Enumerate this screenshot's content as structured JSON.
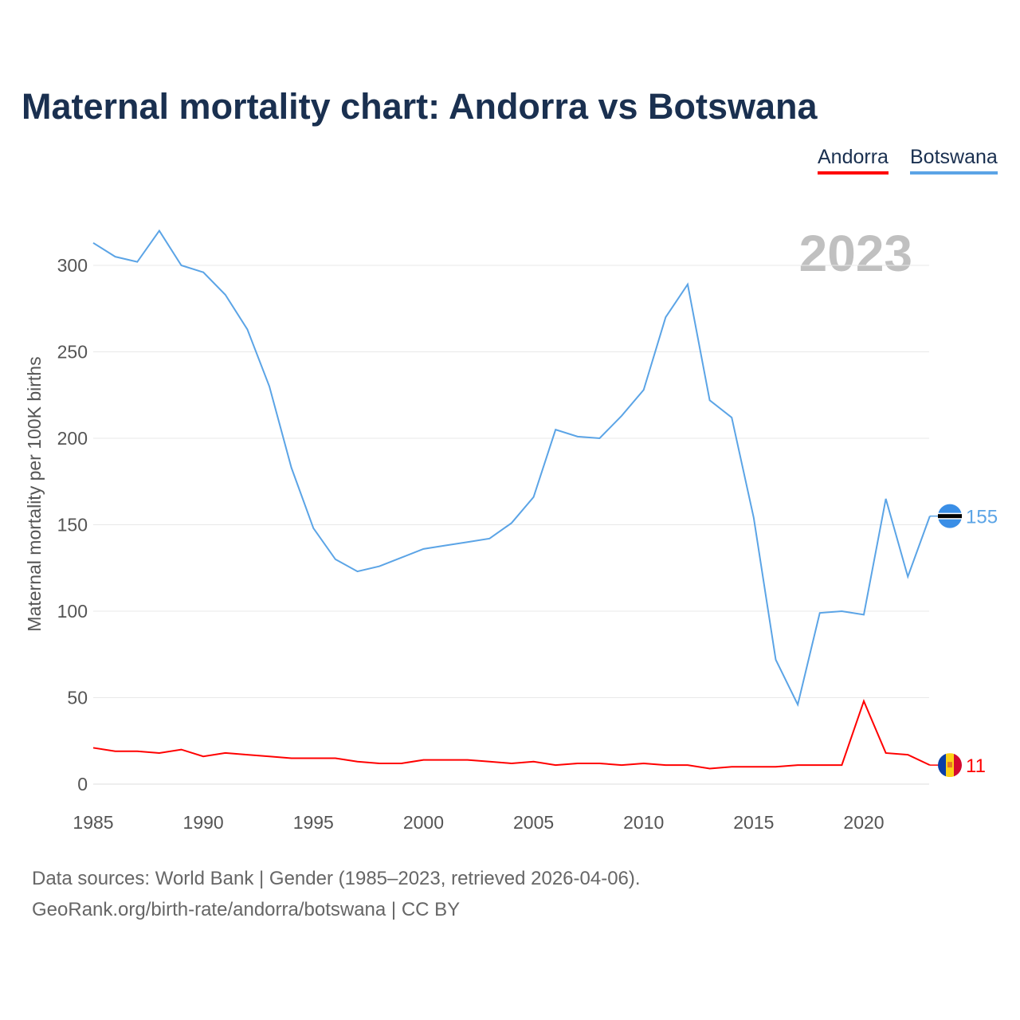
{
  "title": "Maternal mortality chart: Andorra vs Botswana",
  "year_label": "2023",
  "sources": [
    "Data sources: World Bank | Gender (1985–2023, retrieved 2026-04-06).",
    "GeoRank.org/birth-rate/andorra/botswana | CC BY"
  ],
  "chart_data": {
    "type": "line",
    "title": "Maternal mortality chart: Andorra vs Botswana",
    "xlabel": "",
    "ylabel": "Maternal mortality per 100K births",
    "xlim": [
      1985,
      2023
    ],
    "ylim": [
      0,
      320
    ],
    "x_ticks": [
      1985,
      1990,
      1995,
      2000,
      2005,
      2010,
      2015,
      2020
    ],
    "y_ticks": [
      0,
      50,
      100,
      150,
      200,
      250,
      300
    ],
    "grid": true,
    "legend": "top-right",
    "x": [
      1985,
      1986,
      1987,
      1988,
      1989,
      1990,
      1991,
      1992,
      1993,
      1994,
      1995,
      1996,
      1997,
      1998,
      1999,
      2000,
      2001,
      2002,
      2003,
      2004,
      2005,
      2006,
      2007,
      2008,
      2009,
      2010,
      2011,
      2012,
      2013,
      2014,
      2015,
      2016,
      2017,
      2018,
      2019,
      2020,
      2021,
      2022,
      2023
    ],
    "series": [
      {
        "name": "Andorra",
        "color": "#ff0000",
        "end_label": "11",
        "values": [
          21,
          19,
          19,
          18,
          20,
          16,
          18,
          17,
          16,
          15,
          15,
          15,
          13,
          12,
          12,
          14,
          14,
          14,
          13,
          12,
          13,
          11,
          12,
          12,
          11,
          12,
          11,
          11,
          9,
          10,
          10,
          10,
          11,
          11,
          11,
          48,
          18,
          17,
          11
        ]
      },
      {
        "name": "Botswana",
        "color": "#5ba4e6",
        "end_label": "155",
        "values": [
          313,
          305,
          302,
          320,
          300,
          296,
          283,
          263,
          230,
          183,
          148,
          130,
          123,
          126,
          131,
          136,
          138,
          140,
          142,
          151,
          166,
          205,
          201,
          200,
          213,
          228,
          270,
          289,
          222,
          212,
          154,
          72,
          46,
          99,
          100,
          98,
          165,
          120,
          155
        ]
      }
    ]
  }
}
